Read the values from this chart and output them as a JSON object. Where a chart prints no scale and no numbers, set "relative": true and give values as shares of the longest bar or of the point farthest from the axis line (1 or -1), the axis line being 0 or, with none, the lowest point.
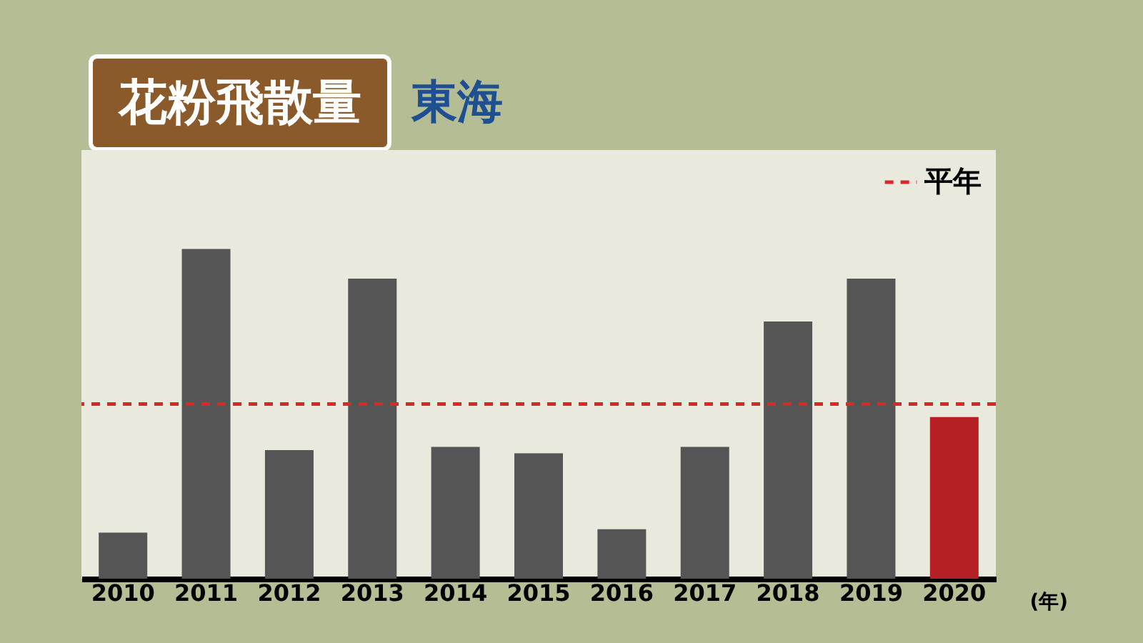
{
  "chart_data": {
    "type": "bar",
    "title": "花粉飛散量",
    "subtitle": "東海",
    "xlabel": "(年)",
    "relative": true,
    "categories": [
      "2010",
      "2011",
      "2012",
      "2013",
      "2014",
      "2015",
      "2016",
      "2017",
      "2018",
      "2019",
      "2020"
    ],
    "values": [
      0.14,
      1,
      0.39,
      0.91,
      0.4,
      0.38,
      0.15,
      0.4,
      0.78,
      0.91,
      0.49
    ],
    "colors": [
      "#555555",
      "#555555",
      "#555555",
      "#555555",
      "#555555",
      "#555555",
      "#555555",
      "#555555",
      "#555555",
      "#555555",
      "#b52024"
    ],
    "ref_lines": [
      {
        "axis": "y",
        "value": 0.53,
        "label": "平年",
        "color": "#d42a2a",
        "line_style": "dashed"
      }
    ],
    "legend": "top right",
    "grid": false
  }
}
